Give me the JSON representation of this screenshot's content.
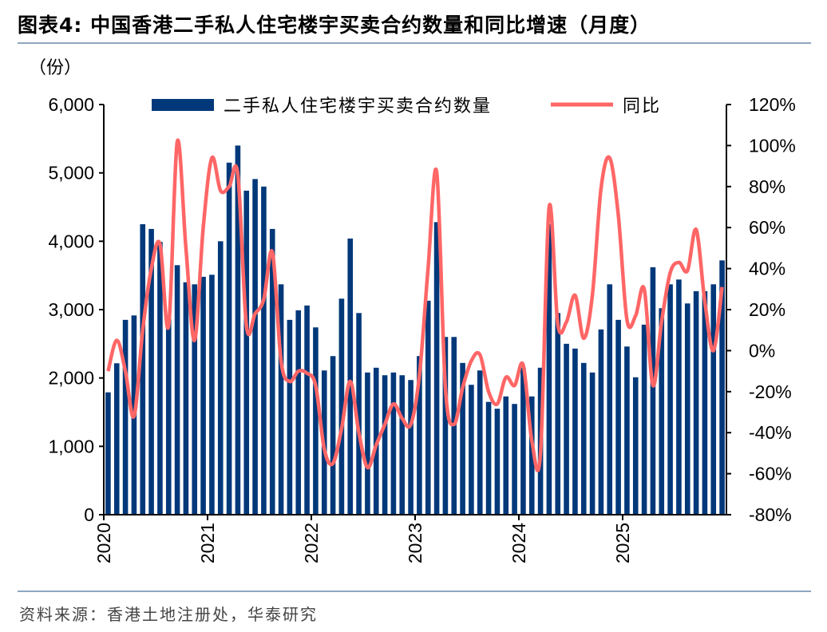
{
  "title": "图表4:   中国香港二手私人住宅楼宇买卖合约数量和同比增速（月度）",
  "source": "资料来源：香港土地注册处，华泰研究",
  "chart_data": {
    "type": "bar+line",
    "title": "图表4:   中国香港二手私人住宅楼宇买卖合约数量和同比增速（月度）",
    "ylabel_left": "（份）",
    "ylim_left": [
      0,
      6000
    ],
    "yticks_left": [
      "0",
      "1,000",
      "2,000",
      "3,000",
      "4,000",
      "5,000",
      "6,000"
    ],
    "ylim_right": [
      -80,
      120
    ],
    "yticks_right": [
      "-80%",
      "-60%",
      "-40%",
      "-20%",
      "0%",
      "20%",
      "40%",
      "60%",
      "80%",
      "100%",
      "120%"
    ],
    "xtick_labels": [
      "2020",
      "2021",
      "2022",
      "2023",
      "2024",
      "2025"
    ],
    "x_start": "2020-01",
    "x_end": "2025-12",
    "legend_position": "top",
    "grid": false,
    "colors": {
      "bars": "#00387A",
      "line": "#FF6666"
    },
    "series": [
      {
        "name": "二手私人住宅楼宇买卖合约数量",
        "type": "bar",
        "axis": "left",
        "values": [
          1790,
          2215,
          2850,
          2915,
          4250,
          4180,
          3990,
          2860,
          3650,
          3400,
          3370,
          3480,
          3510,
          4000,
          5150,
          5400,
          4740,
          4910,
          4800,
          4180,
          3370,
          2850,
          2990,
          3060,
          2740,
          2110,
          2320,
          3160,
          4040,
          2950,
          2080,
          2150,
          2040,
          2080,
          2040,
          1970,
          2320,
          3130,
          4280,
          2600,
          2600,
          2220,
          1900,
          2110,
          1650,
          1550,
          1730,
          1620,
          2150,
          1730,
          2150,
          4250,
          2950,
          2500,
          2430,
          2220,
          2080,
          2710,
          3370,
          2850,
          2460,
          2010,
          2780,
          3620,
          3020,
          3370,
          3440,
          3090,
          3270,
          3270,
          3370,
          3720
        ]
      },
      {
        "name": "同比",
        "type": "line",
        "axis": "right",
        "unit": "%",
        "values": [
          -10,
          5,
          -10,
          -32,
          10,
          40,
          52,
          12,
          102,
          50,
          5,
          60,
          94,
          78,
          80,
          86,
          12,
          18,
          25,
          48,
          -5,
          -15,
          -10,
          -11,
          -17,
          -48,
          -55,
          -38,
          -15,
          -40,
          -57,
          -46,
          -36,
          -26,
          -33,
          -36,
          -12,
          40,
          87,
          -18,
          -36,
          -18,
          -5,
          -2,
          -20,
          -26,
          -13,
          -17,
          -7,
          -44,
          -50,
          70,
          13,
          14,
          27,
          6,
          27,
          79,
          94,
          66,
          15,
          17,
          30,
          -17,
          14,
          38,
          43,
          39,
          59,
          24,
          0,
          31
        ]
      }
    ]
  }
}
